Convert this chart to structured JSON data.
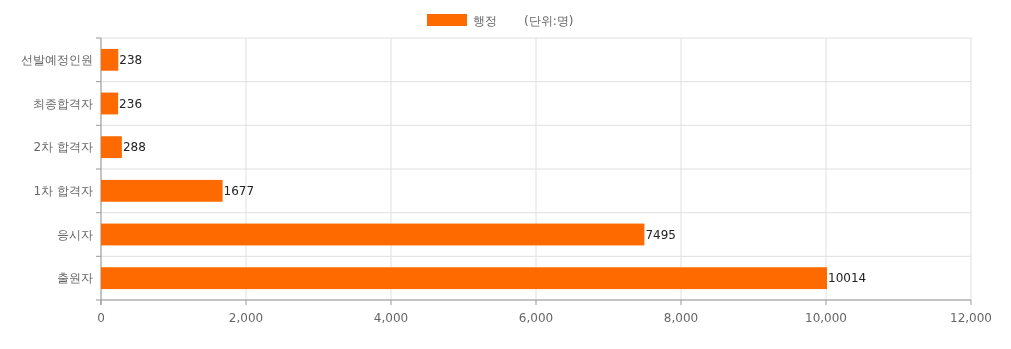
{
  "chart_data": {
    "type": "bar",
    "orientation": "horizontal",
    "categories": [
      "선발예정인원",
      "최종합격자",
      "2차 합격자",
      "1차 합격자",
      "응시자",
      "출원자"
    ],
    "series": [
      {
        "name": "행정",
        "color": "#ff6a00",
        "values": [
          238,
          236,
          288,
          1677,
          7495,
          10014
        ]
      }
    ],
    "xlim": [
      0,
      12000
    ],
    "xticks": [
      {
        "value": 0,
        "label": "0"
      },
      {
        "value": 2000,
        "label": "2,000"
      },
      {
        "value": 4000,
        "label": "4,000"
      },
      {
        "value": 6000,
        "label": "6,000"
      },
      {
        "value": 8000,
        "label": "8,000"
      },
      {
        "value": 10000,
        "label": "10,000"
      },
      {
        "value": 12000,
        "label": "12,000"
      }
    ],
    "annotations": [
      "(단위:명)"
    ],
    "data_labels": true,
    "grid": true,
    "legend": "top"
  }
}
